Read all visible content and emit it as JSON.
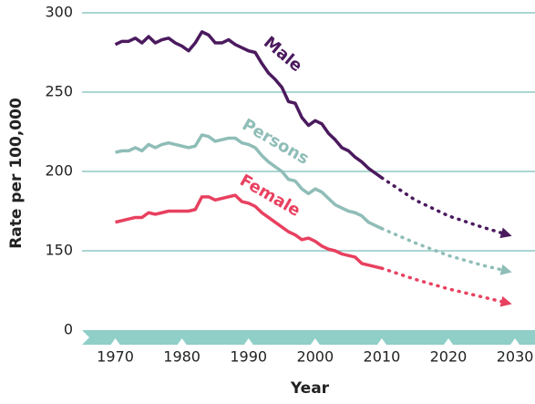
{
  "chart_data": {
    "type": "line",
    "x_label": "Year",
    "y_label": "Rate per 100,000",
    "xlim": [
      1965,
      2033
    ],
    "xticks": [
      1970,
      1980,
      1990,
      2000,
      2010,
      2020,
      2030
    ],
    "ylim": [
      0,
      300
    ],
    "yticks": [
      0,
      150,
      200,
      250,
      300
    ],
    "y_axis_break": [
      0,
      100
    ],
    "grid": true,
    "x": [
      1970,
      1971,
      1972,
      1973,
      1974,
      1975,
      1976,
      1977,
      1978,
      1979,
      1980,
      1981,
      1982,
      1983,
      1984,
      1985,
      1986,
      1987,
      1988,
      1989,
      1990,
      1991,
      1992,
      1993,
      1994,
      1995,
      1996,
      1997,
      1998,
      1999,
      2000,
      2001,
      2002,
      2003,
      2004,
      2005,
      2006,
      2007,
      2008,
      2009,
      2010
    ],
    "projection_x": [
      2010,
      2015,
      2020,
      2025,
      2029
    ],
    "series": [
      {
        "name": "Male",
        "color": "#4b1a5e",
        "values": [
          280,
          282,
          282,
          284,
          281,
          285,
          281,
          283,
          284,
          281,
          279,
          276,
          281,
          288,
          286,
          281,
          281,
          283,
          280,
          278,
          276,
          275,
          268,
          262,
          258,
          253,
          244,
          243,
          234,
          229,
          232,
          230,
          224,
          220,
          215,
          213,
          209,
          206,
          202,
          199,
          196
        ],
        "projection": [
          196,
          182,
          172,
          165,
          160
        ]
      },
      {
        "name": "Persons",
        "color": "#8fbdb7",
        "values": [
          212,
          213,
          213,
          215,
          213,
          217,
          215,
          217,
          218,
          217,
          216,
          215,
          216,
          223,
          222,
          219,
          220,
          221,
          221,
          218,
          217,
          215,
          210,
          206,
          203,
          200,
          195,
          194,
          189,
          186,
          189,
          187,
          183,
          179,
          177,
          175,
          174,
          172,
          168,
          166,
          164
        ],
        "projection": [
          164,
          155,
          147,
          141,
          137
        ]
      },
      {
        "name": "Female",
        "color": "#e8405f",
        "values": [
          168,
          169,
          170,
          171,
          171,
          174,
          173,
          174,
          175,
          175,
          175,
          175,
          176,
          184,
          184,
          182,
          183,
          184,
          185,
          181,
          180,
          178,
          174,
          171,
          168,
          165,
          162,
          160,
          157,
          158,
          156,
          153,
          151,
          150,
          148,
          147,
          146,
          142,
          141,
          140,
          139
        ],
        "projection": [
          139,
          132,
          126,
          121,
          117
        ]
      }
    ]
  }
}
